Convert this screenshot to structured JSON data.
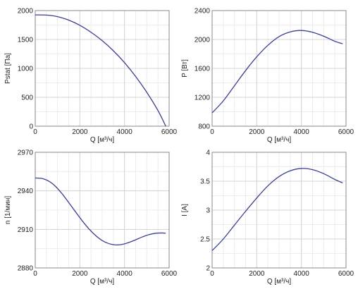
{
  "chart_data": [
    {
      "type": "line",
      "xlabel": "Q [м³/ч]",
      "ylabel": "Pstat [Па]",
      "xlim": [
        0,
        6000
      ],
      "ylim": [
        0,
        2000
      ],
      "xticks": [
        "0",
        "2000",
        "4000",
        "6000"
      ],
      "yticks": [
        "0",
        "500",
        "1000",
        "1500",
        "2000"
      ],
      "grid": true,
      "x": [
        0,
        500,
        1000,
        1500,
        2000,
        2500,
        3000,
        3500,
        4000,
        4500,
        5000,
        5500,
        5850
      ],
      "y": [
        1925,
        1922,
        1895,
        1835,
        1745,
        1625,
        1480,
        1305,
        1100,
        860,
        585,
        270,
        0
      ]
    },
    {
      "type": "line",
      "xlabel": "Q [м³/ч]",
      "ylabel": "P [Вт]",
      "xlim": [
        0,
        6000
      ],
      "ylim": [
        800,
        2400
      ],
      "xticks": [
        "0",
        "2000",
        "4000",
        "6000"
      ],
      "yticks": [
        "800",
        "1200",
        "1600",
        "2000",
        "2400"
      ],
      "grid": true,
      "x": [
        0,
        500,
        1000,
        1500,
        2000,
        2500,
        3000,
        3500,
        4000,
        4500,
        5000,
        5500,
        5850
      ],
      "y": [
        985,
        1150,
        1360,
        1570,
        1760,
        1920,
        2040,
        2105,
        2125,
        2100,
        2045,
        1975,
        1940
      ]
    },
    {
      "type": "line",
      "xlabel": "Q [м³/ч]",
      "ylabel": "n [1/мин]",
      "xlim": [
        0,
        6000
      ],
      "ylim": [
        2880,
        2970
      ],
      "xticks": [
        "0",
        "2000",
        "4000",
        "6000"
      ],
      "yticks": [
        "2880",
        "2910",
        "2940",
        "2970"
      ],
      "grid": true,
      "x": [
        0,
        300,
        600,
        900,
        1200,
        1500,
        1800,
        2100,
        2400,
        2700,
        3000,
        3300,
        3600,
        3900,
        4200,
        4500,
        4800,
        5100,
        5400,
        5700,
        5850
      ],
      "y": [
        2950.0,
        2949.6,
        2947.6,
        2943.6,
        2937.8,
        2930.9,
        2923.8,
        2916.8,
        2910.5,
        2905.3,
        2901.3,
        2898.9,
        2897.9,
        2898.3,
        2899.8,
        2901.9,
        2904.1,
        2905.9,
        2907.0,
        2907.2,
        2907.0
      ]
    },
    {
      "type": "line",
      "xlabel": "Q [м³/ч]",
      "ylabel": "I [A]",
      "xlim": [
        0,
        6000
      ],
      "ylim": [
        2,
        4
      ],
      "xticks": [
        "0",
        "2000",
        "4000",
        "6000"
      ],
      "yticks": [
        "2",
        "2.5",
        "3",
        "3.5",
        "4"
      ],
      "grid": true,
      "x": [
        0,
        500,
        1000,
        1500,
        2000,
        2500,
        3000,
        3500,
        4000,
        4500,
        5000,
        5500,
        5850
      ],
      "y": [
        2.3,
        2.5,
        2.74,
        2.98,
        3.21,
        3.42,
        3.58,
        3.68,
        3.72,
        3.7,
        3.63,
        3.53,
        3.47
      ]
    }
  ],
  "colors": {
    "line": "#3a3f8f",
    "grid": "#d4d4d4",
    "axis": "#888888",
    "text": "#222222"
  }
}
